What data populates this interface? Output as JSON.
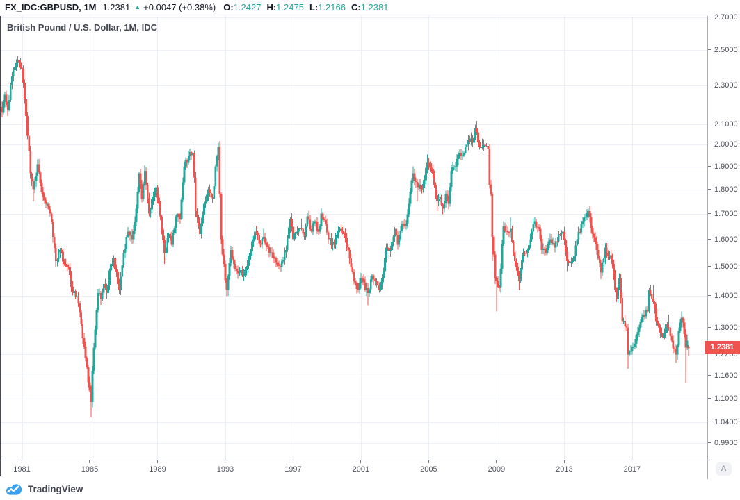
{
  "header": {
    "symbol": "FX_IDC:GBPUSD, 1M",
    "last_price": "1.2381",
    "direction_icon": "▲",
    "change": "+0.0047 (+0.38%)",
    "ohlc": {
      "o_label": "O:",
      "o": "1.2427",
      "h_label": "H:",
      "h": "1.2475",
      "l_label": "L:",
      "l": "1.2166",
      "c_label": "C:",
      "c": "1.2381"
    }
  },
  "main": {
    "legend": "British Pound / U.S. Dollar, 1M, IDC"
  },
  "price_scale": {
    "last_label": "1.2381",
    "auto_button": "A"
  },
  "footer": {
    "brand": "TradingView"
  },
  "colors": {
    "up": "#26a69a",
    "down": "#ef5350",
    "grid": "#edf0f6",
    "axis_text": "#4d505a",
    "label_bg": "#ef5350",
    "brand_blue": "#38a1f2",
    "header_value": "#26a69a"
  },
  "chart_data": {
    "type": "candlestick",
    "title": "British Pound / U.S. Dollar",
    "symbol": "FX_IDC:GBPUSD",
    "timeframe": "1M",
    "feed": "IDC",
    "scale_type": "logarithmic",
    "ylim": [
      0.95,
      2.72
    ],
    "x_range": [
      "1979-11",
      "2020-05"
    ],
    "x_ticks": [
      1981,
      1985,
      1989,
      1993,
      1997,
      2001,
      2005,
      2009,
      2013,
      2017
    ],
    "y_ticks": [
      2.7,
      2.5,
      2.3,
      2.1,
      2.0,
      1.9,
      1.8,
      1.7,
      1.6,
      1.5,
      1.4,
      1.3,
      1.22,
      1.16,
      1.1,
      1.04,
      0.99
    ],
    "last_candle": {
      "open": 1.2427,
      "high": 1.2475,
      "low": 1.2166,
      "close": 1.2381,
      "change": "+0.0047",
      "change_pct": "+0.38%"
    },
    "anchors": [
      [
        "1979-11",
        2.16
      ],
      [
        "1980-01",
        2.25
      ],
      [
        "1980-03",
        2.17
      ],
      [
        "1980-06",
        2.35
      ],
      [
        "1980-10",
        2.44,
        2.465
      ],
      [
        "1981-01",
        2.39
      ],
      [
        "1981-04",
        2.14
      ],
      [
        "1981-07",
        1.87
      ],
      [
        "1981-09",
        1.8,
        null,
        1.75
      ],
      [
        "1981-12",
        1.91
      ],
      [
        "1982-03",
        1.79
      ],
      [
        "1982-06",
        1.74
      ],
      [
        "1982-09",
        1.7
      ],
      [
        "1982-11",
        1.61
      ],
      [
        "1983-01",
        1.52,
        null,
        1.5
      ],
      [
        "1983-04",
        1.56
      ],
      [
        "1983-07",
        1.51
      ],
      [
        "1983-10",
        1.5
      ],
      [
        "1984-01",
        1.41
      ],
      [
        "1984-04",
        1.4
      ],
      [
        "1984-07",
        1.31
      ],
      [
        "1984-10",
        1.21
      ],
      [
        "1985-01",
        1.12
      ],
      [
        "1985-02",
        1.09,
        null,
        1.052
      ],
      [
        "1985-04",
        1.24
      ],
      [
        "1985-07",
        1.41
      ],
      [
        "1985-09",
        1.39
      ],
      [
        "1985-11",
        1.44
      ],
      [
        "1986-01",
        1.41
      ],
      [
        "1986-04",
        1.51
      ],
      [
        "1986-06",
        1.53
      ],
      [
        "1986-09",
        1.44
      ],
      [
        "1986-10",
        1.42,
        null,
        1.405
      ],
      [
        "1987-01",
        1.55
      ],
      [
        "1987-04",
        1.63
      ],
      [
        "1987-07",
        1.6
      ],
      [
        "1987-10",
        1.72
      ],
      [
        "1987-12",
        1.87
      ],
      [
        "1988-02",
        1.76
      ],
      [
        "1988-04",
        1.88,
        1.905
      ],
      [
        "1988-07",
        1.7
      ],
      [
        "1988-10",
        1.77
      ],
      [
        "1988-12",
        1.81
      ],
      [
        "1989-03",
        1.69
      ],
      [
        "1989-06",
        1.55,
        null,
        1.51
      ],
      [
        "1989-09",
        1.62
      ],
      [
        "1989-11",
        1.58
      ],
      [
        "1990-02",
        1.69
      ],
      [
        "1990-05",
        1.68
      ],
      [
        "1990-08",
        1.9
      ],
      [
        "1990-11",
        1.95
      ],
      [
        "1991-02",
        1.96,
        2.005
      ],
      [
        "1991-04",
        1.71
      ],
      [
        "1991-07",
        1.62,
        null,
        1.6
      ],
      [
        "1991-10",
        1.74
      ],
      [
        "1992-01",
        1.8
      ],
      [
        "1992-04",
        1.76
      ],
      [
        "1992-06",
        1.9
      ],
      [
        "1992-08",
        1.99,
        2.01
      ],
      [
        "1992-09",
        1.78
      ],
      [
        "1992-10",
        1.6
      ],
      [
        "1992-12",
        1.51
      ],
      [
        "1993-02",
        1.42,
        null,
        1.4
      ],
      [
        "1993-05",
        1.56
      ],
      [
        "1993-08",
        1.49
      ],
      [
        "1993-11",
        1.48
      ],
      [
        "1994-02",
        1.47
      ],
      [
        "1994-06",
        1.54
      ],
      [
        "1994-10",
        1.63
      ],
      [
        "1995-02",
        1.58
      ],
      [
        "1995-04",
        1.61,
        1.64
      ],
      [
        "1995-08",
        1.55
      ],
      [
        "1995-12",
        1.53
      ],
      [
        "1996-04",
        1.5,
        null,
        1.49
      ],
      [
        "1996-08",
        1.56
      ],
      [
        "1996-11",
        1.68
      ],
      [
        "1997-01",
        1.6
      ],
      [
        "1997-04",
        1.63
      ],
      [
        "1997-07",
        1.64,
        1.68
      ],
      [
        "1997-09",
        1.61
      ],
      [
        "1997-11",
        1.69
      ],
      [
        "1998-02",
        1.63
      ],
      [
        "1998-04",
        1.67
      ],
      [
        "1998-07",
        1.63
      ],
      [
        "1998-09",
        1.7,
        1.72
      ],
      [
        "1998-12",
        1.66
      ],
      [
        "1999-02",
        1.6
      ],
      [
        "1999-06",
        1.58
      ],
      [
        "1999-10",
        1.64
      ],
      [
        "2000-01",
        1.62
      ],
      [
        "2000-04",
        1.56
      ],
      [
        "2000-08",
        1.45
      ],
      [
        "2000-11",
        1.42
      ],
      [
        "2001-01",
        1.46
      ],
      [
        "2001-06",
        1.41,
        null,
        1.37
      ],
      [
        "2001-09",
        1.47
      ],
      [
        "2001-12",
        1.45
      ],
      [
        "2002-02",
        1.42
      ],
      [
        "2002-04",
        1.46
      ],
      [
        "2002-07",
        1.57
      ],
      [
        "2002-10",
        1.56
      ],
      [
        "2003-01",
        1.64
      ],
      [
        "2003-03",
        1.58
      ],
      [
        "2003-06",
        1.66
      ],
      [
        "2003-09",
        1.66
      ],
      [
        "2003-12",
        1.79
      ],
      [
        "2004-02",
        1.87,
        1.9
      ],
      [
        "2004-05",
        1.81,
        null,
        1.75
      ],
      [
        "2004-08",
        1.8
      ],
      [
        "2004-10",
        1.84
      ],
      [
        "2004-12",
        1.92,
        1.955
      ],
      [
        "2005-03",
        1.89
      ],
      [
        "2005-05",
        1.82
      ],
      [
        "2005-07",
        1.75,
        null,
        1.71
      ],
      [
        "2005-09",
        1.77
      ],
      [
        "2005-11",
        1.72
      ],
      [
        "2006-01",
        1.78
      ],
      [
        "2006-03",
        1.74
      ],
      [
        "2006-05",
        1.88
      ],
      [
        "2006-08",
        1.9
      ],
      [
        "2006-11",
        1.96
      ],
      [
        "2007-02",
        1.96
      ],
      [
        "2007-04",
        2.0
      ],
      [
        "2007-07",
        2.03,
        2.06
      ],
      [
        "2007-08",
        2.01
      ],
      [
        "2007-10",
        2.08
      ],
      [
        "2007-11",
        2.06,
        2.116
      ],
      [
        "2008-01",
        1.99
      ],
      [
        "2008-03",
        1.99,
        2.03
      ],
      [
        "2008-07",
        1.98,
        2.01
      ],
      [
        "2008-08",
        1.82
      ],
      [
        "2008-09",
        1.78
      ],
      [
        "2008-10",
        1.61,
        null,
        1.52
      ],
      [
        "2008-12",
        1.46,
        null,
        1.44
      ],
      [
        "2009-01",
        1.45,
        null,
        1.35
      ],
      [
        "2009-03",
        1.43
      ],
      [
        "2009-06",
        1.65
      ],
      [
        "2009-08",
        1.63
      ],
      [
        "2009-11",
        1.64,
        1.685
      ],
      [
        "2010-02",
        1.52
      ],
      [
        "2010-05",
        1.45,
        null,
        1.42
      ],
      [
        "2010-08",
        1.55
      ],
      [
        "2010-11",
        1.56
      ],
      [
        "2011-02",
        1.63
      ],
      [
        "2011-04",
        1.67
      ],
      [
        "2011-07",
        1.64
      ],
      [
        "2011-09",
        1.56
      ],
      [
        "2011-12",
        1.55
      ],
      [
        "2012-03",
        1.6
      ],
      [
        "2012-06",
        1.57
      ],
      [
        "2012-09",
        1.62
      ],
      [
        "2012-12",
        1.63
      ],
      [
        "2013-03",
        1.52,
        null,
        1.485
      ],
      [
        "2013-07",
        1.52
      ],
      [
        "2013-10",
        1.6
      ],
      [
        "2014-02",
        1.67
      ],
      [
        "2014-06",
        1.71,
        1.72
      ],
      [
        "2014-09",
        1.62
      ],
      [
        "2014-12",
        1.56
      ],
      [
        "2015-03",
        1.48,
        null,
        1.457
      ],
      [
        "2015-06",
        1.57
      ],
      [
        "2015-08",
        1.54
      ],
      [
        "2015-11",
        1.51
      ],
      [
        "2016-02",
        1.39
      ],
      [
        "2016-04",
        1.46
      ],
      [
        "2016-06",
        1.32,
        null,
        1.312
      ],
      [
        "2016-09",
        1.3
      ],
      [
        "2016-10",
        1.22,
        null,
        1.18
      ],
      [
        "2016-12",
        1.23
      ],
      [
        "2017-03",
        1.25
      ],
      [
        "2017-06",
        1.3
      ],
      [
        "2017-09",
        1.34
      ],
      [
        "2017-12",
        1.35
      ],
      [
        "2018-01",
        1.42
      ],
      [
        "2018-04",
        1.38,
        1.437
      ],
      [
        "2018-06",
        1.32
      ],
      [
        "2018-08",
        1.3,
        null,
        1.265
      ],
      [
        "2018-11",
        1.27
      ],
      [
        "2019-01",
        1.31
      ],
      [
        "2019-03",
        1.3,
        1.34
      ],
      [
        "2019-05",
        1.26
      ],
      [
        "2019-08",
        1.22,
        null,
        1.196
      ],
      [
        "2019-10",
        1.29
      ],
      [
        "2019-12",
        1.33,
        1.35
      ],
      [
        "2020-02",
        1.28
      ],
      [
        "2020-03",
        1.24,
        null,
        1.141
      ],
      [
        "2020-04",
        1.26
      ],
      [
        "2020-05",
        1.2381,
        1.2475,
        1.2166
      ]
    ]
  }
}
